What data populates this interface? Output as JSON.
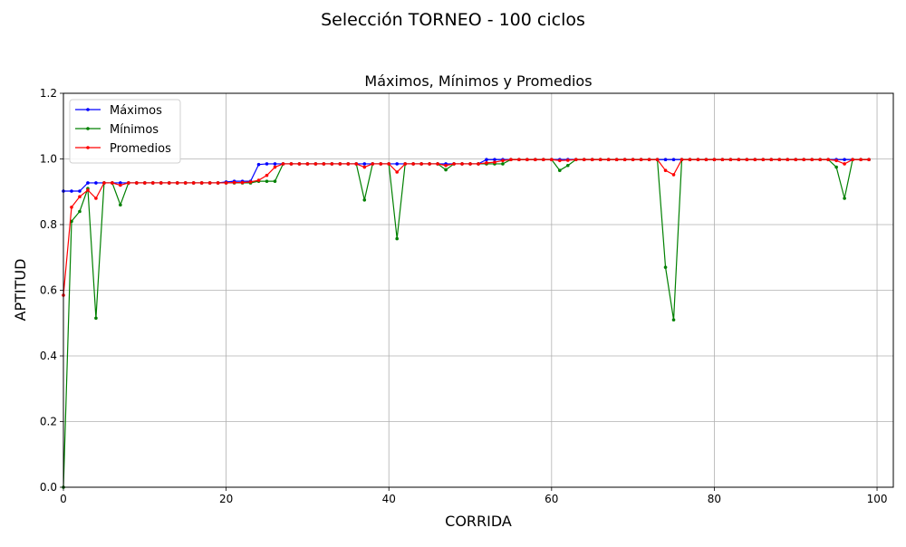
{
  "figure": {
    "suptitle": "Selección TORNEO - 100 ciclos"
  },
  "chart_data": {
    "type": "line",
    "title": "Máximos, Mínimos y Promedios",
    "xlabel": "CORRIDA",
    "ylabel": "APTITUD",
    "xlim": [
      0,
      102
    ],
    "ylim": [
      0,
      1.2
    ],
    "xticks": [
      0,
      20,
      40,
      60,
      80,
      100
    ],
    "yticks": [
      0.0,
      0.2,
      0.4,
      0.6,
      0.8,
      1.0,
      1.2
    ],
    "ytick_labels": [
      "0.0",
      "0.2",
      "0.4",
      "0.6",
      "0.8",
      "1.0",
      "1.2"
    ],
    "grid": true,
    "legend": "upper-left",
    "x": [
      0,
      1,
      2,
      3,
      4,
      5,
      6,
      7,
      8,
      9,
      10,
      11,
      12,
      13,
      14,
      15,
      16,
      17,
      18,
      19,
      20,
      21,
      22,
      23,
      24,
      25,
      26,
      27,
      28,
      29,
      30,
      31,
      32,
      33,
      34,
      35,
      36,
      37,
      38,
      39,
      40,
      41,
      42,
      43,
      44,
      45,
      46,
      47,
      48,
      49,
      50,
      51,
      52,
      53,
      54,
      55,
      56,
      57,
      58,
      59,
      60,
      61,
      62,
      63,
      64,
      65,
      66,
      67,
      68,
      69,
      70,
      71,
      72,
      73,
      74,
      75,
      76,
      77,
      78,
      79,
      80,
      81,
      82,
      83,
      84,
      85,
      86,
      87,
      88,
      89,
      90,
      91,
      92,
      93,
      94,
      95,
      96,
      97,
      98,
      99
    ],
    "series": [
      {
        "name": "Máximos",
        "color": "#0000ff",
        "values": [
          0.902,
          0.902,
          0.902,
          0.927,
          0.927,
          0.927,
          0.927,
          0.927,
          0.927,
          0.927,
          0.927,
          0.927,
          0.927,
          0.927,
          0.927,
          0.927,
          0.927,
          0.927,
          0.927,
          0.927,
          0.93,
          0.932,
          0.932,
          0.932,
          0.983,
          0.985,
          0.985,
          0.985,
          0.985,
          0.985,
          0.985,
          0.985,
          0.985,
          0.985,
          0.985,
          0.985,
          0.985,
          0.985,
          0.985,
          0.985,
          0.985,
          0.985,
          0.985,
          0.985,
          0.985,
          0.985,
          0.985,
          0.985,
          0.985,
          0.985,
          0.985,
          0.985,
          0.998,
          0.998,
          0.998,
          0.998,
          0.998,
          0.998,
          0.998,
          0.998,
          0.998,
          0.998,
          0.998,
          0.998,
          0.998,
          0.998,
          0.998,
          0.998,
          0.998,
          0.998,
          0.998,
          0.998,
          0.998,
          0.998,
          0.998,
          0.998,
          0.998,
          0.998,
          0.998,
          0.998,
          0.998,
          0.998,
          0.998,
          0.998,
          0.998,
          0.998,
          0.998,
          0.998,
          0.998,
          0.998,
          0.998,
          0.998,
          0.998,
          0.998,
          0.998,
          0.998,
          0.998,
          0.998,
          0.998,
          0.998
        ]
      },
      {
        "name": "Mínimos",
        "color": "#008000",
        "values": [
          0.0,
          0.81,
          0.84,
          0.91,
          0.515,
          0.927,
          0.927,
          0.86,
          0.927,
          0.927,
          0.927,
          0.927,
          0.927,
          0.927,
          0.927,
          0.927,
          0.927,
          0.927,
          0.927,
          0.927,
          0.927,
          0.927,
          0.927,
          0.927,
          0.932,
          0.932,
          0.932,
          0.985,
          0.985,
          0.985,
          0.985,
          0.985,
          0.985,
          0.985,
          0.985,
          0.985,
          0.985,
          0.875,
          0.985,
          0.985,
          0.985,
          0.757,
          0.985,
          0.985,
          0.985,
          0.985,
          0.985,
          0.967,
          0.985,
          0.985,
          0.985,
          0.985,
          0.985,
          0.985,
          0.985,
          0.998,
          0.998,
          0.998,
          0.998,
          0.998,
          0.998,
          0.965,
          0.98,
          0.998,
          0.998,
          0.998,
          0.998,
          0.998,
          0.998,
          0.998,
          0.998,
          0.998,
          0.998,
          0.998,
          0.67,
          0.51,
          0.998,
          0.998,
          0.998,
          0.998,
          0.998,
          0.998,
          0.998,
          0.998,
          0.998,
          0.998,
          0.998,
          0.998,
          0.998,
          0.998,
          0.998,
          0.998,
          0.998,
          0.998,
          0.998,
          0.975,
          0.88,
          0.998,
          0.998,
          0.998
        ]
      },
      {
        "name": "Promedios",
        "color": "#ff0000",
        "values": [
          0.585,
          0.853,
          0.885,
          0.905,
          0.88,
          0.927,
          0.927,
          0.92,
          0.927,
          0.927,
          0.927,
          0.927,
          0.927,
          0.927,
          0.927,
          0.927,
          0.927,
          0.927,
          0.927,
          0.927,
          0.927,
          0.928,
          0.928,
          0.93,
          0.935,
          0.95,
          0.975,
          0.985,
          0.985,
          0.985,
          0.985,
          0.985,
          0.985,
          0.985,
          0.985,
          0.985,
          0.985,
          0.975,
          0.985,
          0.985,
          0.985,
          0.96,
          0.985,
          0.985,
          0.985,
          0.985,
          0.985,
          0.98,
          0.985,
          0.985,
          0.985,
          0.985,
          0.988,
          0.99,
          0.995,
          0.998,
          0.998,
          0.998,
          0.998,
          0.998,
          0.998,
          0.995,
          0.996,
          0.998,
          0.998,
          0.998,
          0.998,
          0.998,
          0.998,
          0.998,
          0.998,
          0.998,
          0.998,
          0.998,
          0.965,
          0.952,
          0.998,
          0.998,
          0.998,
          0.998,
          0.998,
          0.998,
          0.998,
          0.998,
          0.998,
          0.998,
          0.998,
          0.998,
          0.998,
          0.998,
          0.998,
          0.998,
          0.998,
          0.998,
          0.998,
          0.995,
          0.985,
          0.998,
          0.998,
          0.998
        ]
      }
    ]
  }
}
